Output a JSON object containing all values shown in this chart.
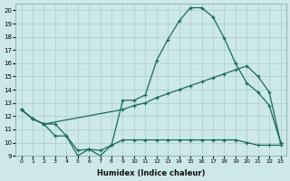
{
  "xlabel": "Humidex (Indice chaleur)",
  "bg_color": "#cce8e8",
  "grid_color": "#aacccc",
  "line_color": "#1a6b5a",
  "xlim": [
    -0.5,
    23.5
  ],
  "ylim": [
    9,
    20.5
  ],
  "yticks": [
    9,
    10,
    11,
    12,
    13,
    14,
    15,
    16,
    17,
    18,
    19,
    20
  ],
  "xticks": [
    0,
    1,
    2,
    3,
    4,
    5,
    6,
    7,
    8,
    9,
    10,
    11,
    12,
    13,
    14,
    15,
    16,
    17,
    18,
    19,
    20,
    21,
    22,
    23
  ],
  "line1_x": [
    0,
    1,
    2,
    3,
    4,
    5,
    6,
    7,
    8,
    9,
    10,
    11,
    12,
    13,
    14,
    15,
    16,
    17,
    18,
    19,
    20,
    21,
    22,
    23
  ],
  "line1_y": [
    12.5,
    11.8,
    11.4,
    11.4,
    10.5,
    9.0,
    9.5,
    9.0,
    9.8,
    13.2,
    13.2,
    13.6,
    16.2,
    17.8,
    19.2,
    20.2,
    20.2,
    19.5,
    17.9,
    16.0,
    14.5,
    13.8,
    12.8,
    10.0
  ],
  "line2_x": [
    0,
    1,
    2,
    9,
    10,
    11,
    12,
    13,
    14,
    15,
    16,
    17,
    18,
    19,
    20,
    21,
    22,
    23
  ],
  "line2_y": [
    12.5,
    11.8,
    11.4,
    12.5,
    12.8,
    13.0,
    13.4,
    13.7,
    14.0,
    14.3,
    14.6,
    14.9,
    15.2,
    15.5,
    15.8,
    15.0,
    13.8,
    10.0
  ],
  "line3_x": [
    0,
    1,
    2,
    3,
    4,
    5,
    6,
    7,
    8,
    9,
    10,
    11,
    12,
    13,
    14,
    15,
    16,
    17,
    18,
    19,
    20,
    21,
    22,
    23
  ],
  "line3_y": [
    12.5,
    11.8,
    11.4,
    10.5,
    10.5,
    9.4,
    9.5,
    9.4,
    9.8,
    10.2,
    10.2,
    10.2,
    10.2,
    10.2,
    10.2,
    10.2,
    10.2,
    10.2,
    10.2,
    10.2,
    10.0,
    9.8,
    9.8,
    9.8
  ]
}
